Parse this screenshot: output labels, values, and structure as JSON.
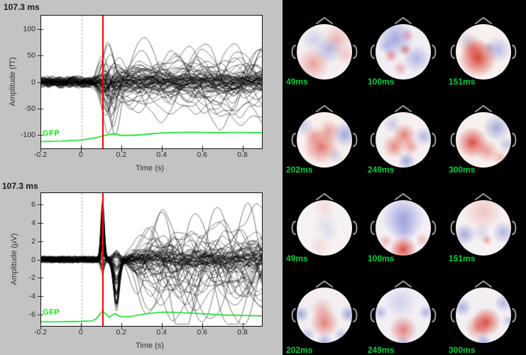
{
  "window": {
    "figure_bg": "#c3c3c3",
    "topo_bg": "#000000"
  },
  "colors": {
    "cursor_red": "#ff0000",
    "gfp_green": "#00dd22",
    "topo_label_green": "#00d23c",
    "trace_black": "#000000",
    "map_red": "#d6261a",
    "map_blue": "#5462cc",
    "head_outline_gray": "#9b9b9b"
  },
  "misc": {
    "stray_mark": "'"
  },
  "butterfly": {
    "plots": [
      {
        "title": "107.3 ms",
        "ylabel": "Amplitude (fT)",
        "xlabel": "Time (s)",
        "gfp_label": "GFP",
        "xtick_labels": [
          "-0.2",
          "0",
          "0.2",
          "0.4",
          "0.6",
          "0.8"
        ],
        "ytick_labels": [
          "100",
          "50",
          "0",
          "-50",
          "-100"
        ]
      },
      {
        "title": "107.3 ms",
        "ylabel": "Amplitude (µV)",
        "xlabel": "Time (s)",
        "gfp_label": "GFP",
        "xtick_labels": [
          "-0.2",
          "0",
          "0.2",
          "0.4",
          "0.6",
          "0.8"
        ],
        "ytick_labels": [
          "6",
          "4",
          "2",
          "0",
          "-2",
          "-4",
          "-6"
        ]
      }
    ]
  },
  "topo": {
    "labels": [
      "49ms",
      "100ms",
      "151ms",
      "202ms",
      "249ms",
      "300ms",
      "49ms",
      "100ms",
      "151ms",
      "202ms",
      "249ms",
      "300ms"
    ]
  },
  "chart_data": [
    {
      "type": "line",
      "role": "butterfly-meg",
      "title": "107.3 ms",
      "xlabel": "Time (s)",
      "ylabel": "Amplitude (fT)",
      "xlim": [
        -0.2,
        0.9
      ],
      "ylim": [
        -127,
        127
      ],
      "xticks": [
        -0.2,
        0,
        0.2,
        0.4,
        0.6,
        0.8
      ],
      "yticks": [
        100,
        50,
        0,
        -50,
        -100
      ],
      "event_time_s": 0,
      "cursor_time_s": 0.1073,
      "description": "Overlay of all MEG channel waveforms (black butterfly plot); baseline band of about +/-20 fT before 0 s, transient peaks up to about +115/-90 fT between 0.1 and 0.25 s, sustained spread of roughly +/-90 fT afterwards",
      "series": [
        {
          "name": "GFP",
          "color": "#00dd22",
          "points": [
            [
              -0.2,
              -114
            ],
            [
              -0.15,
              -113.5
            ],
            [
              -0.1,
              -113
            ],
            [
              -0.05,
              -112
            ],
            [
              0,
              -111
            ],
            [
              0.05,
              -108
            ],
            [
              0.08,
              -106
            ],
            [
              0.1,
              -104
            ],
            [
              0.13,
              -101
            ],
            [
              0.16,
              -99
            ],
            [
              0.2,
              -102
            ],
            [
              0.25,
              -102
            ],
            [
              0.3,
              -101
            ],
            [
              0.35,
              -99
            ],
            [
              0.4,
              -97.5
            ],
            [
              0.45,
              -97
            ],
            [
              0.5,
              -96.5
            ],
            [
              0.55,
              -96
            ],
            [
              0.6,
              -96.5
            ],
            [
              0.65,
              -97
            ],
            [
              0.7,
              -97
            ],
            [
              0.75,
              -96.5
            ],
            [
              0.8,
              -96.5
            ],
            [
              0.85,
              -97
            ],
            [
              0.9,
              -97
            ]
          ]
        }
      ]
    },
    {
      "type": "line",
      "role": "butterfly-eeg",
      "title": "107.3 ms",
      "xlabel": "Time (s)",
      "ylabel": "Amplitude (µV)",
      "xlim": [
        -0.2,
        0.9
      ],
      "ylim": [
        -7.3,
        7.3
      ],
      "xticks": [
        -0.2,
        0,
        0.2,
        0.4,
        0.6,
        0.8
      ],
      "yticks": [
        6,
        4,
        2,
        0,
        -2,
        -4,
        -6
      ],
      "event_time_s": 0,
      "cursor_time_s": 0.1073,
      "description": "Overlay of all EEG channel waveforms (black butterfly plot); flat baseline of about +/-0.6 uV, sharp synchronized peak to +6.5 uV at ~0.105 s, downward excursion to about -7 uV near 0.17 s, sustained spread of roughly +/-5 uV afterwards",
      "series": [
        {
          "name": "GFP",
          "color": "#00dd22",
          "points": [
            [
              -0.2,
              -6.85
            ],
            [
              -0.15,
              -6.85
            ],
            [
              -0.1,
              -6.85
            ],
            [
              -0.05,
              -6.82
            ],
            [
              0,
              -6.8
            ],
            [
              0.05,
              -6.75
            ],
            [
              0.07,
              -6.6
            ],
            [
              0.09,
              -6.1
            ],
            [
              0.105,
              -5.7
            ],
            [
              0.12,
              -5.95
            ],
            [
              0.14,
              -6.35
            ],
            [
              0.155,
              -6.1
            ],
            [
              0.17,
              -5.95
            ],
            [
              0.185,
              -6.2
            ],
            [
              0.2,
              -6.3
            ],
            [
              0.25,
              -6.25
            ],
            [
              0.3,
              -6.05
            ],
            [
              0.35,
              -5.9
            ],
            [
              0.42,
              -5.78
            ],
            [
              0.5,
              -5.85
            ],
            [
              0.6,
              -5.95
            ],
            [
              0.7,
              -6.1
            ],
            [
              0.8,
              -6.15
            ],
            [
              0.9,
              -6.2
            ]
          ]
        }
      ]
    },
    {
      "type": "heatmap",
      "role": "topographies",
      "layout": "4 rows x 3 columns of scalp topographies on black background; rows 1-2 are MEG maps, rows 3-4 are EEG maps",
      "label_color": "#00d23c",
      "maps": [
        {
          "modality": "MEG",
          "label": "49ms",
          "base": "#f5eff0",
          "blobs": [
            [
              "b",
              58,
              46,
              0.4,
              32
            ],
            [
              "r",
              30,
              72,
              0.38,
              30
            ],
            [
              "r",
              74,
              26,
              0.28,
              26
            ],
            [
              "b",
              32,
              28,
              0.22,
              24
            ],
            [
              "r",
              88,
              55,
              0.2,
              18
            ]
          ]
        },
        {
          "modality": "MEG",
          "label": "100ms",
          "base": "#f1eef3",
          "blobs": [
            [
              "b",
              36,
              26,
              0.5,
              34
            ],
            [
              "b",
              74,
              62,
              0.42,
              26
            ],
            [
              "r",
              54,
              46,
              0.5,
              15
            ],
            [
              "r",
              28,
              57,
              0.45,
              14
            ],
            [
              "r",
              57,
              20,
              0.3,
              13
            ],
            [
              "b",
              20,
              40,
              0.25,
              16
            ],
            [
              "r",
              45,
              80,
              0.3,
              14
            ]
          ]
        },
        {
          "modality": "MEG",
          "label": "151ms",
          "base": "#f7f1ef",
          "blobs": [
            [
              "r",
              40,
              62,
              0.85,
              40
            ],
            [
              "r",
              32,
              44,
              0.45,
              26
            ],
            [
              "b",
              76,
              46,
              0.4,
              26
            ],
            [
              "b",
              20,
              30,
              0.25,
              18
            ],
            [
              "b",
              60,
              42,
              0.28,
              14
            ]
          ]
        },
        {
          "modality": "MEG",
          "label": "202ms",
          "base": "#f6efec",
          "blobs": [
            [
              "r",
              44,
              62,
              0.6,
              38
            ],
            [
              "r",
              58,
              34,
              0.38,
              24
            ],
            [
              "b",
              87,
              40,
              0.5,
              22
            ],
            [
              "b",
              12,
              25,
              0.28,
              16
            ],
            [
              "r",
              30,
              42,
              0.3,
              20
            ],
            [
              "b",
              70,
              78,
              0.25,
              14
            ]
          ]
        },
        {
          "modality": "MEG",
          "label": "249ms",
          "base": "#f5efef",
          "blobs": [
            [
              "r",
              52,
              42,
              0.55,
              28
            ],
            [
              "r",
              34,
              62,
              0.5,
              24
            ],
            [
              "r",
              64,
              62,
              0.38,
              18
            ],
            [
              "b",
              56,
              88,
              0.5,
              16
            ],
            [
              "b",
              87,
              44,
              0.4,
              17
            ],
            [
              "b",
              30,
              22,
              0.28,
              16
            ]
          ]
        },
        {
          "modality": "MEG",
          "label": "300ms",
          "base": "#f6f0ee",
          "blobs": [
            [
              "r",
              30,
              55,
              0.8,
              32
            ],
            [
              "r",
              56,
              70,
              0.4,
              24
            ],
            [
              "b",
              74,
              28,
              0.5,
              24
            ],
            [
              "b",
              92,
              58,
              0.32,
              14
            ],
            [
              "r",
              80,
              82,
              0.25,
              14
            ]
          ]
        },
        {
          "modality": "EEG",
          "label": "49ms",
          "base": "#f6f2f2",
          "blobs": [
            [
              "b",
              52,
              45,
              0.14,
              32
            ],
            [
              "r",
              50,
              14,
              0.12,
              22
            ],
            [
              "r",
              42,
              82,
              0.12,
              20
            ],
            [
              "b",
              60,
              62,
              0.1,
              18
            ]
          ]
        },
        {
          "modality": "EEG",
          "label": "100ms",
          "base": "#f3eff5",
          "blobs": [
            [
              "b",
              50,
              32,
              0.55,
              46
            ],
            [
              "b",
              52,
              55,
              0.28,
              30
            ],
            [
              "r",
              50,
              89,
              0.8,
              24
            ],
            [
              "r",
              18,
              74,
              0.28,
              12
            ],
            [
              "r",
              84,
              72,
              0.25,
              12
            ]
          ]
        },
        {
          "modality": "EEG",
          "label": "151ms",
          "base": "#f6f1f1",
          "blobs": [
            [
              "r",
              50,
              20,
              0.22,
              38
            ],
            [
              "b",
              16,
              62,
              0.48,
              20
            ],
            [
              "b",
              86,
              58,
              0.42,
              20
            ],
            [
              "r",
              56,
              72,
              0.38,
              11
            ],
            [
              "b",
              46,
              58,
              0.18,
              22
            ]
          ]
        },
        {
          "modality": "EEG",
          "label": "202ms",
          "base": "#f3eff1",
          "blobs": [
            [
              "r",
              50,
              64,
              0.55,
              32
            ],
            [
              "r",
              46,
              40,
              0.28,
              28
            ],
            [
              "b",
              7,
              48,
              0.5,
              15
            ],
            [
              "b",
              93,
              48,
              0.5,
              15
            ],
            [
              "b",
              50,
              97,
              0.42,
              14
            ],
            [
              "b",
              20,
              85,
              0.3,
              12
            ],
            [
              "b",
              80,
              85,
              0.3,
              12
            ]
          ]
        },
        {
          "modality": "EEG",
          "label": "249ms",
          "base": "#f2eff4",
          "blobs": [
            [
              "r",
              50,
              76,
              0.55,
              28
            ],
            [
              "b",
              45,
              26,
              0.22,
              34
            ],
            [
              "b",
              9,
              45,
              0.4,
              13
            ],
            [
              "b",
              91,
              45,
              0.4,
              13
            ],
            [
              "b",
              50,
              97,
              0.3,
              12
            ]
          ]
        },
        {
          "modality": "EEG",
          "label": "300ms",
          "base": "#f2eef2",
          "blobs": [
            [
              "r",
              55,
              62,
              0.78,
              32
            ],
            [
              "r",
              40,
              72,
              0.45,
              24
            ],
            [
              "b",
              12,
              36,
              0.45,
              15
            ],
            [
              "b",
              86,
              28,
              0.4,
              15
            ],
            [
              "b",
              50,
              97,
              0.45,
              13
            ],
            [
              "b",
              95,
              60,
              0.3,
              10
            ]
          ]
        }
      ]
    }
  ]
}
